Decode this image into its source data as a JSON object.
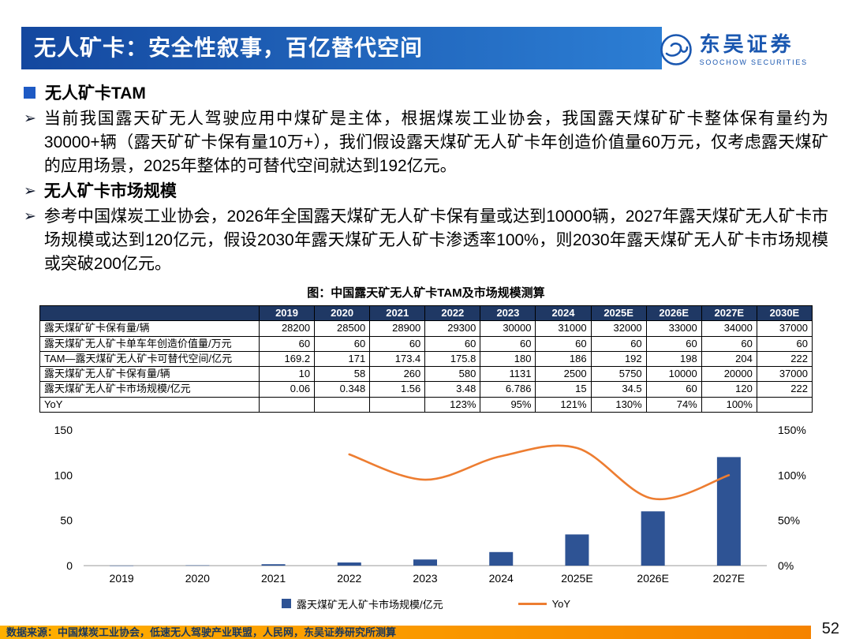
{
  "header": {
    "title": "无人矿卡：安全性叙事，百亿替代空间",
    "logo": {
      "cn": "东吴证券",
      "en": "SOOCHOW SECURITIES"
    }
  },
  "ui": {
    "bullet_arrow": "➢"
  },
  "content": {
    "section1_title": "无人矿卡TAM",
    "para1": "当前我国露天矿无人驾驶应用中煤矿是主体，根据煤炭工业协会，我国露天煤矿矿卡整体保有量约为30000+辆（露天矿矿卡保有量10万+），我们假设露天煤矿无人矿卡年创造价值量60万元，仅考虑露天煤矿的应用场景，2025年整体的可替代空间就达到192亿元。",
    "section2_title": "无人矿卡市场规模",
    "para2": "参考中国煤炭工业协会，2026年全国露天煤矿无人矿卡保有量或达到10000辆，2027年露天煤矿无人矿卡市场规模或达到120亿元，假设2030年露天煤矿无人矿卡渗透率100%，则2030年露天煤矿无人矿卡市场规模或突破200亿元。",
    "figure_title": "图：中国露天矿无人矿卡TAM及市场规模测算"
  },
  "table": {
    "columns": [
      "",
      "2019",
      "2020",
      "2021",
      "2022",
      "2023",
      "2024",
      "2025E",
      "2026E",
      "2027E",
      "2030E"
    ],
    "rows": [
      {
        "label": "露天煤矿矿卡保有量/辆",
        "values": [
          "28200",
          "28500",
          "28900",
          "29300",
          "30000",
          "31000",
          "32000",
          "33000",
          "34000",
          "37000"
        ]
      },
      {
        "label": "露天煤矿无人矿卡单车年创造价值量/万元",
        "values": [
          "60",
          "60",
          "60",
          "60",
          "60",
          "60",
          "60",
          "60",
          "60",
          "60"
        ]
      },
      {
        "label": "TAM—露天煤矿无人矿卡可替代空间/亿元",
        "values": [
          "169.2",
          "171",
          "173.4",
          "175.8",
          "180",
          "186",
          "192",
          "198",
          "204",
          "222"
        ]
      },
      {
        "label": "露天煤矿无人矿卡保有量/辆",
        "values": [
          "10",
          "58",
          "260",
          "580",
          "1131",
          "2500",
          "5750",
          "10000",
          "20000",
          "37000"
        ]
      },
      {
        "label": "露天煤矿无人矿卡市场规模/亿元",
        "values": [
          "0.06",
          "0.348",
          "1.56",
          "3.48",
          "6.786",
          "15",
          "34.5",
          "60",
          "120",
          "222"
        ]
      },
      {
        "label": "YoY",
        "values": [
          "",
          "",
          "",
          "123%",
          "95%",
          "121%",
          "130%",
          "74%",
          "100%",
          ""
        ]
      }
    ]
  },
  "chart_data": {
    "type": "bar",
    "title": "图：中国露天矿无人矿卡TAM及市场规模测算",
    "categories": [
      "2019",
      "2020",
      "2021",
      "2022",
      "2023",
      "2024",
      "2025E",
      "2026E",
      "2027E"
    ],
    "series": [
      {
        "name": "露天煤矿无人矿卡市场规模/亿元",
        "type": "bar",
        "axis": "left",
        "color": "#2e5394",
        "values": [
          0.06,
          0.348,
          1.56,
          3.48,
          6.786,
          15,
          34.5,
          60,
          120
        ]
      },
      {
        "name": "YoY",
        "type": "line",
        "axis": "right",
        "color": "#ed7d31",
        "values": [
          null,
          null,
          null,
          123,
          95,
          121,
          130,
          74,
          100
        ]
      }
    ],
    "left_axis": {
      "min": 0,
      "max": 150,
      "ticks": [
        {
          "v": 0,
          "label": "0"
        },
        {
          "v": 50,
          "label": "50"
        },
        {
          "v": 100,
          "label": "100"
        },
        {
          "v": 150,
          "label": "150"
        }
      ]
    },
    "right_axis": {
      "min": 0,
      "max": 150,
      "ticks": [
        {
          "v": 0,
          "label": "0%"
        },
        {
          "v": 50,
          "label": "50%"
        },
        {
          "v": 100,
          "label": "100%"
        },
        {
          "v": 150,
          "label": "150%"
        }
      ]
    },
    "grid": false,
    "legend_position": "bottom"
  },
  "footer": {
    "source": "数据来源：中国煤炭工业协会，低速无人驾驶产业联盟，人民网，东吴证券研究所测算",
    "page": "52"
  },
  "colors": {
    "banner_gradient_start": "#14489f",
    "banner_gradient_end": "#2c7ed4",
    "table_header_bg": "#1f3864",
    "bar_color": "#2e5394",
    "line_color": "#ed7d31",
    "footer_bar_orange": "#ff9900",
    "logo_blue": "#1a57b0",
    "bullet_square_blue": "#1e5ac4"
  }
}
